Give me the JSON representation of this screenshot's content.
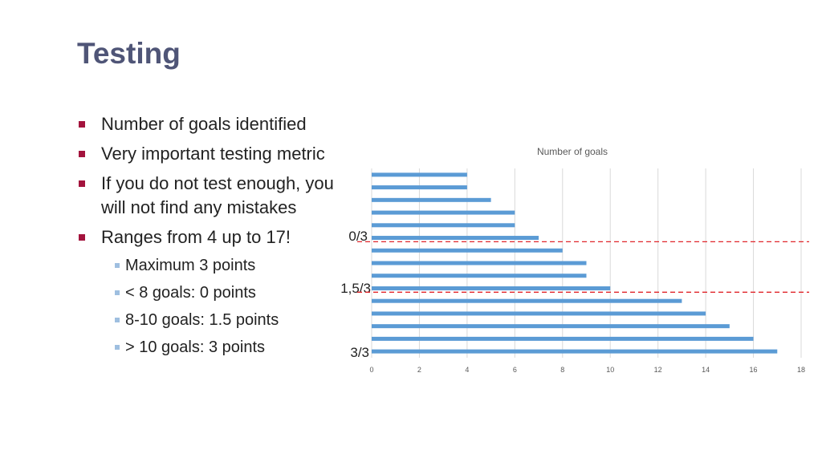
{
  "slide": {
    "title": "Testing",
    "bullets": [
      "Number of goals identified",
      "Very important testing metric",
      "If you do not test enough, you will not find any mistakes",
      "Ranges from 4 up to 17!"
    ],
    "sub_bullets": [
      "Maximum 3 points",
      "< 8 goals: 0 points",
      "8-10 goals: 1.5 points",
      "> 10 goals: 3 points"
    ],
    "colors": {
      "title": "#4f5577",
      "bullet": "#a3133d",
      "sub_bullet": "#9fbfe0"
    }
  },
  "chart_data": {
    "type": "bar",
    "orientation": "horizontal",
    "title": "Number of goals",
    "values": [
      4,
      4,
      5,
      6,
      6,
      7,
      8,
      9,
      9,
      10,
      13,
      14,
      15,
      16,
      17
    ],
    "xlim": [
      0,
      18
    ],
    "xticks": [
      0,
      2,
      4,
      6,
      8,
      10,
      12,
      14,
      16,
      18
    ],
    "grid": "vertical",
    "bar_color": "#5b9bd5",
    "annotations": {
      "zones": [
        "0/3",
        "1,5/3",
        "3/3"
      ],
      "threshold_color": "#e0262b"
    }
  }
}
